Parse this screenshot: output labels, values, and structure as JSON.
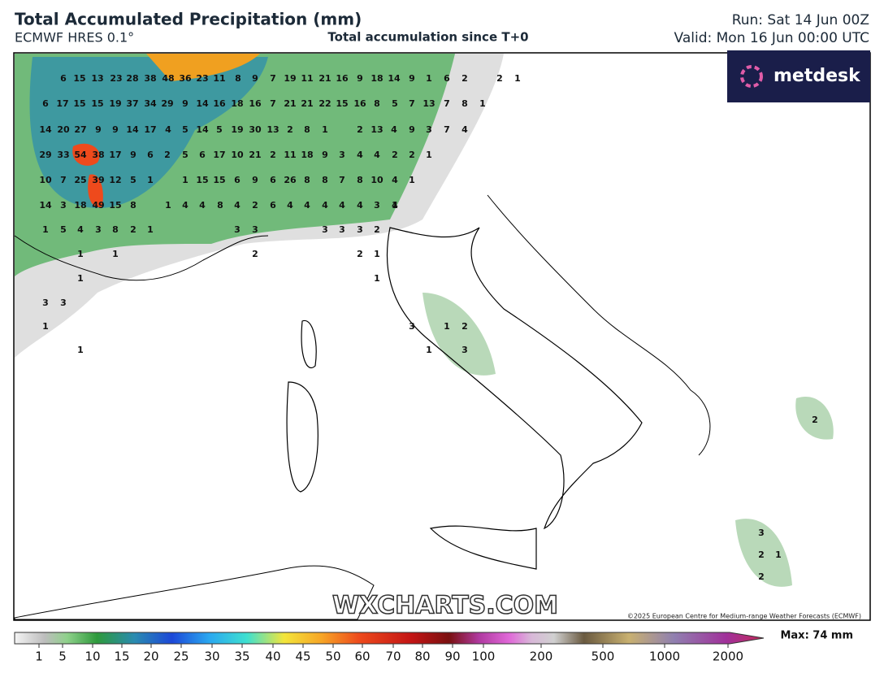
{
  "header": {
    "title": "Total Accumulated Precipitation (mm)",
    "model": "ECMWF HRES 0.1°",
    "subtitle": "Total accumulation since T+0",
    "run": "Run: Sat 14 Jun 00Z",
    "valid": "Valid: Mon 16 Jun 00:00 UTC"
  },
  "logo": "metdesk",
  "watermark": "WXCHARTS.COM",
  "copyright": "©2025 European Centre for Medium-range Weather Forecasts (ECMWF)",
  "map_labels": [
    [
      6,
      15,
      13,
      23,
      28,
      38,
      48,
      36,
      23,
      11,
      8,
      9,
      7,
      19,
      11,
      21,
      16,
      9,
      18,
      14,
      9,
      1,
      6,
      2,
      2,
      1
    ],
    [
      6,
      17,
      15,
      15,
      19,
      37,
      34,
      29,
      9,
      14,
      16,
      18,
      16,
      7,
      21,
      21,
      22,
      15,
      16,
      8,
      5,
      7,
      13,
      7,
      8,
      1
    ],
    [
      14,
      20,
      27,
      9,
      9,
      14,
      17,
      4,
      5,
      14,
      5,
      19,
      30,
      13,
      2,
      8,
      1,
      2,
      13,
      4,
      9,
      3,
      7,
      4
    ],
    [
      29,
      33,
      54,
      38,
      17,
      9,
      6,
      2,
      5,
      6,
      17,
      10,
      21,
      2,
      11,
      18,
      9,
      3,
      4,
      4,
      2,
      2,
      1
    ],
    [
      10,
      7,
      25,
      39,
      12,
      5,
      1,
      1,
      15,
      15,
      6,
      9,
      6,
      26,
      8,
      8,
      7,
      8,
      10,
      4,
      1
    ],
    [
      14,
      3,
      18,
      49,
      15,
      8,
      1,
      4,
      4,
      8,
      4,
      2,
      6,
      4,
      4,
      4,
      4,
      4,
      3,
      4,
      1
    ],
    [
      1,
      5,
      4,
      3,
      8,
      2,
      1,
      3,
      3,
      3,
      3,
      3,
      2
    ],
    [
      1,
      1,
      2,
      2,
      1
    ],
    [
      1,
      1
    ],
    [
      3,
      3
    ],
    [
      1,
      3,
      1,
      2
    ],
    [
      1,
      1,
      3
    ],
    [
      2
    ],
    [
      3
    ],
    [
      2,
      1
    ],
    [
      2
    ]
  ],
  "colorbar": {
    "ticks": [
      1,
      5,
      10,
      15,
      20,
      25,
      30,
      35,
      40,
      45,
      50,
      60,
      70,
      80,
      90,
      100,
      200,
      500,
      1000,
      2000
    ],
    "max_label": "Max: 74 mm"
  }
}
